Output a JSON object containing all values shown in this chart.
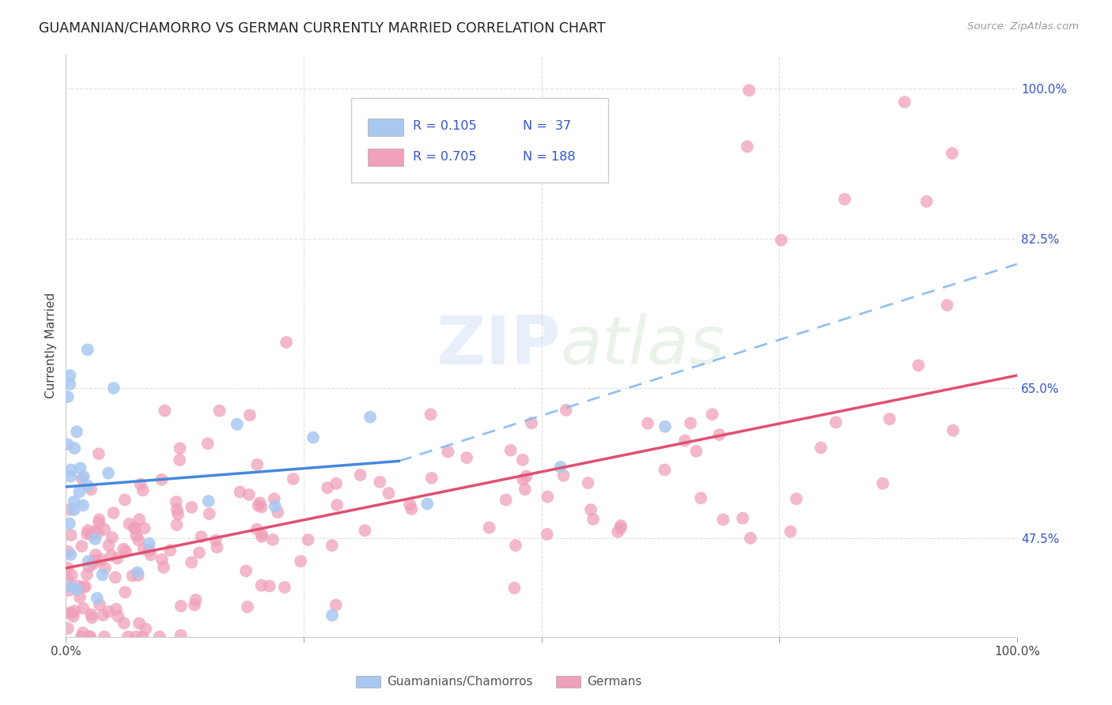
{
  "title": "GUAMANIAN/CHAMORRO VS GERMAN CURRENTLY MARRIED CORRELATION CHART",
  "source": "Source: ZipAtlas.com",
  "ylabel": "Currently Married",
  "ytick_labels": [
    "47.5%",
    "65.0%",
    "82.5%",
    "100.0%"
  ],
  "ytick_values": [
    0.475,
    0.65,
    0.825,
    1.0
  ],
  "legend_label1": "Guamanians/Chamorros",
  "legend_label2": "Germans",
  "R1": "0.105",
  "N1": "37",
  "R2": "0.705",
  "N2": "188",
  "color_blue": "#a8c8f0",
  "color_pink": "#f0a0b8",
  "line_blue": "#4488dd",
  "line_pink": "#e05070",
  "line_blue_dash": "#88bbee",
  "legend_text_color": "#3355cc",
  "background_color": "#ffffff",
  "xlim": [
    0.0,
    1.0
  ],
  "ylim": [
    0.36,
    1.04
  ]
}
